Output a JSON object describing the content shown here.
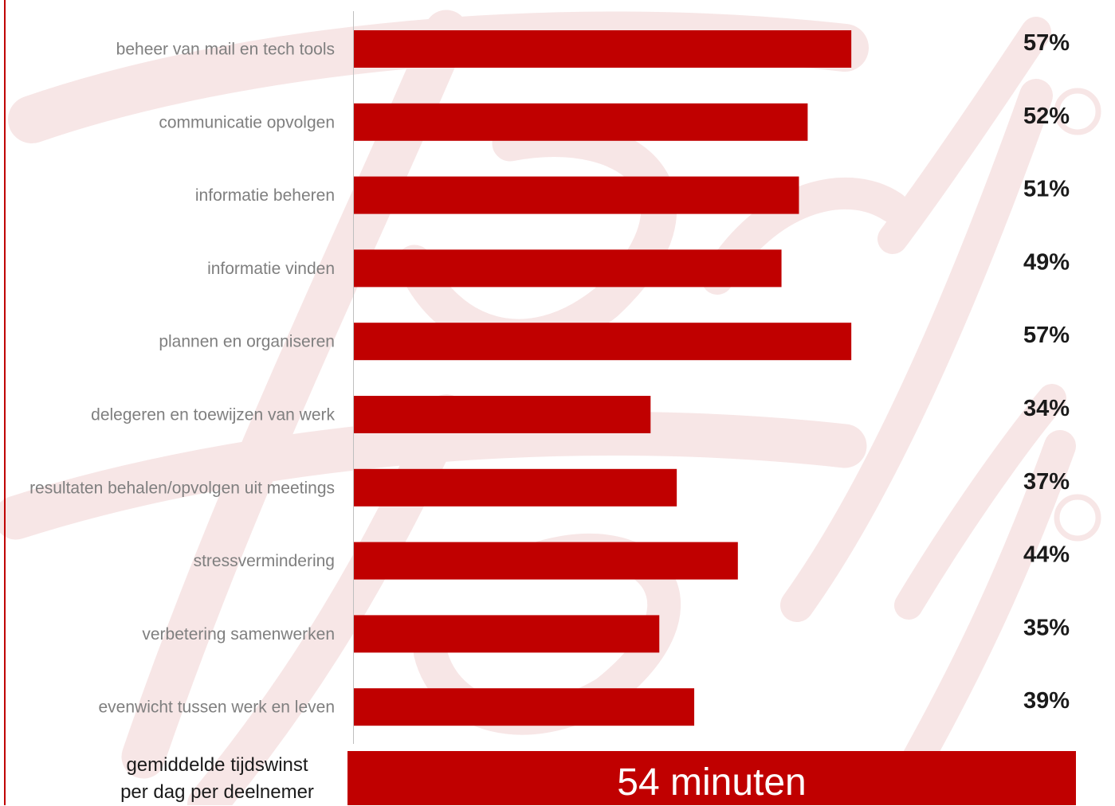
{
  "chart_data": {
    "type": "bar",
    "orientation": "horizontal",
    "categories": [
      "beheer van mail en tech tools",
      "communicatie opvolgen",
      "informatie beheren",
      "informatie vinden",
      "plannen en organiseren",
      "delegeren en toewijzen van werk",
      "resultaten behalen/opvolgen uit meetings",
      "stressvermindering",
      "verbetering samenwerken",
      "evenwicht tussen werk en leven"
    ],
    "values": [
      57,
      52,
      51,
      49,
      57,
      34,
      37,
      44,
      35,
      39
    ],
    "value_labels": [
      "57%",
      "52%",
      "51%",
      "49%",
      "57%",
      "34%",
      "37%",
      "44%",
      "35%",
      "39%"
    ],
    "bar_color": "#c00000",
    "xlim": [
      0,
      100
    ],
    "grid": false,
    "legend": "none"
  },
  "summary": {
    "label_line1": "gemiddelde tijdswinst",
    "label_line2": "per dag per deelnemer",
    "value": "54 minuten"
  },
  "colors": {
    "accent": "#c00000",
    "watermark": "#f7e6e6",
    "category_text": "#7f7f7f",
    "value_text": "#1a1a1a"
  }
}
